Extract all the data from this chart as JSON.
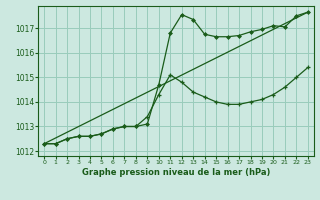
{
  "title": "Graphe pression niveau de la mer (hPa)",
  "bg_color": "#cce8e0",
  "grid_color": "#99ccbb",
  "line_color": "#1a5c1a",
  "xlim": [
    -0.5,
    23.5
  ],
  "ylim": [
    1011.8,
    1017.9
  ],
  "yticks": [
    1012,
    1013,
    1014,
    1015,
    1016,
    1017
  ],
  "xticks": [
    0,
    1,
    2,
    3,
    4,
    5,
    6,
    7,
    8,
    9,
    10,
    11,
    12,
    13,
    14,
    15,
    16,
    17,
    18,
    19,
    20,
    21,
    22,
    23
  ],
  "line1_x": [
    0,
    1,
    2,
    3,
    4,
    5,
    6,
    7,
    8,
    9,
    10,
    11,
    12,
    13,
    14,
    15,
    16,
    17,
    18,
    19,
    20,
    21,
    22,
    23
  ],
  "line1_y": [
    1012.3,
    1012.3,
    1012.5,
    1012.6,
    1012.6,
    1012.7,
    1012.9,
    1013.0,
    1013.0,
    1013.1,
    1014.7,
    1016.8,
    1017.55,
    1017.35,
    1016.75,
    1016.65,
    1016.65,
    1016.7,
    1016.85,
    1016.95,
    1017.1,
    1017.05,
    1017.5,
    1017.65
  ],
  "line2_x": [
    0,
    1,
    2,
    3,
    4,
    5,
    6,
    7,
    8,
    9,
    10,
    11,
    12,
    13,
    14,
    15,
    16,
    17,
    18,
    19,
    20,
    21,
    22,
    23
  ],
  "line2_y": [
    1012.3,
    1012.3,
    1012.5,
    1012.6,
    1012.6,
    1012.7,
    1012.9,
    1013.0,
    1013.0,
    1013.4,
    1014.3,
    1015.1,
    1014.8,
    1014.4,
    1014.2,
    1014.0,
    1013.9,
    1013.9,
    1014.0,
    1014.1,
    1014.3,
    1014.6,
    1015.0,
    1015.4
  ],
  "line3_x": [
    0,
    23
  ],
  "line3_y": [
    1012.3,
    1017.65
  ]
}
